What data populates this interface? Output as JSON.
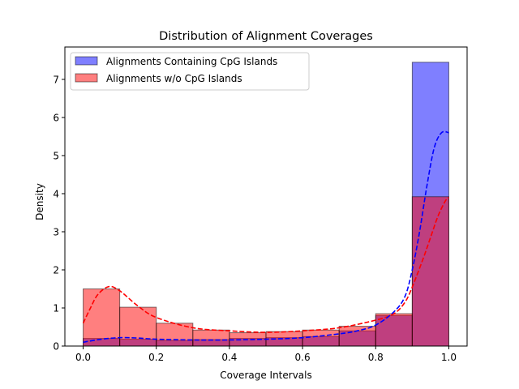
{
  "chart_data": {
    "type": "bar",
    "title": "Distribution of Alignment Coverages",
    "xlabel": "Coverage Intervals",
    "ylabel": "Density",
    "xlim": [
      -0.05,
      1.05
    ],
    "ylim": [
      0,
      7.85
    ],
    "xticks": [
      0.0,
      0.2,
      0.4,
      0.6,
      0.8,
      1.0
    ],
    "xtick_labels": [
      "0.0",
      "0.2",
      "0.4",
      "0.6",
      "0.8",
      "1.0"
    ],
    "yticks": [
      0,
      1,
      2,
      3,
      4,
      5,
      6,
      7
    ],
    "ytick_labels": [
      "0",
      "1",
      "2",
      "3",
      "4",
      "5",
      "6",
      "7"
    ],
    "grid": false,
    "legend_position": "upper-left",
    "bin_edges": [
      0.0,
      0.1,
      0.2,
      0.3,
      0.4,
      0.5,
      0.6,
      0.7,
      0.8,
      0.9,
      1.0
    ],
    "series": [
      {
        "name": "Alignments Containing CpG Islands",
        "color": "#0000ff",
        "fill_opacity": 0.5,
        "values": [
          0.2,
          0.18,
          0.15,
          0.17,
          0.2,
          0.22,
          0.25,
          0.4,
          0.8,
          7.45
        ],
        "kde_color": "#0000ff",
        "kde_x": [
          0.0,
          0.05,
          0.1,
          0.15,
          0.2,
          0.3,
          0.4,
          0.5,
          0.6,
          0.7,
          0.75,
          0.8,
          0.85,
          0.88,
          0.9,
          0.92,
          0.94,
          0.96,
          0.98,
          1.0
        ],
        "kde_y": [
          0.1,
          0.18,
          0.22,
          0.21,
          0.18,
          0.16,
          0.16,
          0.18,
          0.22,
          0.32,
          0.4,
          0.55,
          0.9,
          1.3,
          2.0,
          3.0,
          4.2,
          5.2,
          5.6,
          5.6
        ]
      },
      {
        "name": "Alignments w/o CpG Islands",
        "color": "#ff0000",
        "fill_opacity": 0.5,
        "values": [
          1.5,
          1.02,
          0.6,
          0.42,
          0.35,
          0.38,
          0.42,
          0.52,
          0.85,
          3.92
        ],
        "kde_color": "#ff0000",
        "kde_x": [
          0.0,
          0.02,
          0.04,
          0.07,
          0.1,
          0.15,
          0.2,
          0.3,
          0.4,
          0.5,
          0.6,
          0.7,
          0.8,
          0.85,
          0.88,
          0.9,
          0.93,
          0.95,
          0.97,
          0.99,
          1.0
        ],
        "kde_y": [
          0.6,
          1.0,
          1.35,
          1.56,
          1.45,
          1.05,
          0.75,
          0.48,
          0.4,
          0.36,
          0.4,
          0.48,
          0.68,
          0.85,
          1.15,
          1.55,
          2.3,
          2.85,
          3.4,
          3.8,
          3.9
        ]
      }
    ]
  }
}
